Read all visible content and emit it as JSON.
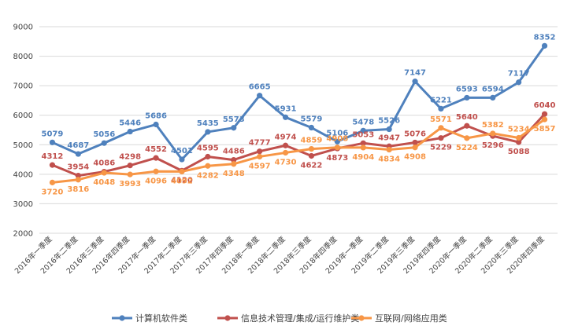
{
  "chart_data": {
    "type": "line",
    "title": "",
    "xlabel": "",
    "ylabel": "",
    "ylim": [
      2000,
      9000
    ],
    "yticks": [
      2000,
      3000,
      4000,
      5000,
      6000,
      7000,
      8000,
      9000
    ],
    "grid": true,
    "legend_position": "bottom",
    "categories": [
      "2016年一季度",
      "2016年二季度",
      "2016年三季度",
      "2016年四季度",
      "2017年一季度",
      "2017年二季度",
      "2017年三季度",
      "2017年四季度",
      "2018年一季度",
      "2018年二季度",
      "2018年三季度",
      "2018年四季度",
      "2019年一季度",
      "2019年二季度",
      "2019年三季度",
      "2019年四季度",
      "2020年一季度",
      "2020年二季度",
      "2020年三季度",
      "2020年四季度"
    ],
    "series": [
      {
        "name": "计算机软件类",
        "color": "#4F81BD",
        "values": [
          5079,
          4687,
          5056,
          5446,
          5686,
          4501,
          5435,
          5573,
          6665,
          5931,
          5579,
          5106,
          5478,
          5526,
          7147,
          6221,
          6593,
          6594,
          7117,
          8352
        ]
      },
      {
        "name": "信息技术管理/集成/运行维护类",
        "color": "#C0504D",
        "values": [
          4312,
          3954,
          4086,
          4298,
          4552,
          4120,
          4595,
          4486,
          4777,
          4974,
          4622,
          4873,
          5053,
          4947,
          5076,
          5229,
          5640,
          5296,
          5088,
          6040
        ]
      },
      {
        "name": "互联网/网络应用类",
        "color": "#F79646",
        "values": [
          3720,
          3816,
          4048,
          3993,
          4096,
          4092,
          4282,
          4348,
          4597,
          4730,
          4859,
          4908,
          4904,
          4834,
          4908,
          5571,
          5224,
          5382,
          5234,
          5857
        ]
      }
    ]
  }
}
